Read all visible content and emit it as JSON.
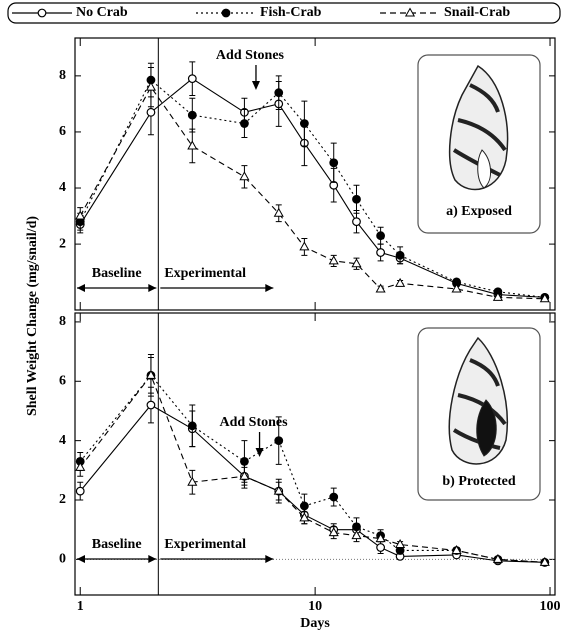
{
  "chart_data": [
    {
      "type": "line",
      "xscale": "log",
      "ylabel": "Shell Weight  Change (mg/snail/d)",
      "panel_label": "a) Exposed",
      "xtick_labels": false,
      "x": [
        1,
        2,
        3,
        5,
        7,
        9,
        12,
        15,
        19,
        23,
        40,
        60,
        95
      ],
      "xlim": [
        0.95,
        105
      ],
      "xticks": [
        1,
        10,
        100
      ],
      "ylim": [
        -0.35,
        9.35
      ],
      "yticks": [
        2,
        4,
        6,
        8
      ],
      "phase_boundary": 2.15,
      "phases": [
        "Baseline",
        "Experimental"
      ],
      "annotation": {
        "text": "Add Stones",
        "x": 5.6
      },
      "series": [
        {
          "name": "No Crab",
          "color": "#000",
          "dash": "solid",
          "marker": "circle-open",
          "values": [
            2.7,
            6.7,
            7.9,
            6.7,
            7.0,
            5.6,
            4.1,
            2.8,
            1.7,
            1.5,
            0.6,
            0.2,
            0.1
          ],
          "errors": [
            0.3,
            0.8,
            0.6,
            0.5,
            0.8,
            0.8,
            0.6,
            0.4,
            0.3,
            0.2,
            0.1,
            0.1,
            0.05
          ]
        },
        {
          "name": "Fish-Crab",
          "color": "#000",
          "dash": "dotted",
          "marker": "circle",
          "values": [
            2.8,
            7.85,
            6.6,
            6.3,
            7.4,
            6.3,
            4.9,
            3.6,
            2.3,
            1.6,
            0.65,
            0.3,
            0.1
          ],
          "errors": [
            0.3,
            0.6,
            0.6,
            0.5,
            0.6,
            0.8,
            0.7,
            0.5,
            0.3,
            0.3,
            0.1,
            0.1,
            0.05
          ]
        },
        {
          "name": "Snail-Crab",
          "color": "#000",
          "dash": "dashed",
          "marker": "triangle-open",
          "values": [
            3.0,
            7.6,
            5.5,
            4.4,
            3.1,
            1.9,
            1.4,
            1.3,
            0.4,
            0.6,
            0.4,
            0.1,
            0.05
          ],
          "errors": [
            0.3,
            0.7,
            0.6,
            0.4,
            0.3,
            0.3,
            0.2,
            0.2,
            0.1,
            0.1,
            0.1,
            0.05,
            0.05
          ]
        }
      ]
    },
    {
      "type": "line",
      "xscale": "log",
      "xlabel": "Days",
      "panel_label": "b) Protected",
      "xtick_labels": true,
      "zero_line": true,
      "x": [
        1,
        2,
        3,
        5,
        7,
        9,
        12,
        15,
        19,
        23,
        40,
        60,
        95
      ],
      "xlim": [
        0.95,
        105
      ],
      "xticks": [
        1,
        10,
        100
      ],
      "ylim": [
        -1.2,
        8.3
      ],
      "yticks": [
        0,
        2,
        4,
        6,
        8
      ],
      "phase_boundary": 2.15,
      "phases": [
        "Baseline",
        "Experimental"
      ],
      "annotation": {
        "text": "Add Stones",
        "x": 5.8
      },
      "series": [
        {
          "color": "#000",
          "dash": "solid",
          "marker": "circle-open",
          "values": [
            2.3,
            5.2,
            4.4,
            2.8,
            2.3,
            1.5,
            1.0,
            1.0,
            0.4,
            0.1,
            0.15,
            -0.05,
            -0.1
          ],
          "errors": [
            0.3,
            0.6,
            0.6,
            0.4,
            0.4,
            0.3,
            0.2,
            0.2,
            0.2,
            0.1,
            0.1,
            0.05,
            0.05
          ]
        },
        {
          "color": "#000",
          "dash": "dotted",
          "marker": "circle",
          "values": [
            3.3,
            6.2,
            4.5,
            3.3,
            4.0,
            1.8,
            2.1,
            1.1,
            0.8,
            0.3,
            0.3,
            0.0,
            -0.1
          ],
          "errors": [
            0.3,
            0.7,
            0.7,
            0.7,
            0.8,
            0.4,
            0.3,
            0.3,
            0.2,
            0.1,
            0.1,
            0.05,
            0.05
          ]
        },
        {
          "color": "#000",
          "dash": "dashed",
          "marker": "triangle-open",
          "values": [
            3.1,
            6.2,
            2.6,
            2.8,
            2.3,
            1.4,
            0.9,
            0.8,
            0.7,
            0.5,
            0.3,
            0.0,
            -0.1
          ],
          "errors": [
            0.3,
            0.6,
            0.4,
            0.3,
            0.3,
            0.2,
            0.2,
            0.2,
            0.1,
            0.1,
            0.1,
            0.05,
            0.05
          ]
        }
      ]
    }
  ]
}
